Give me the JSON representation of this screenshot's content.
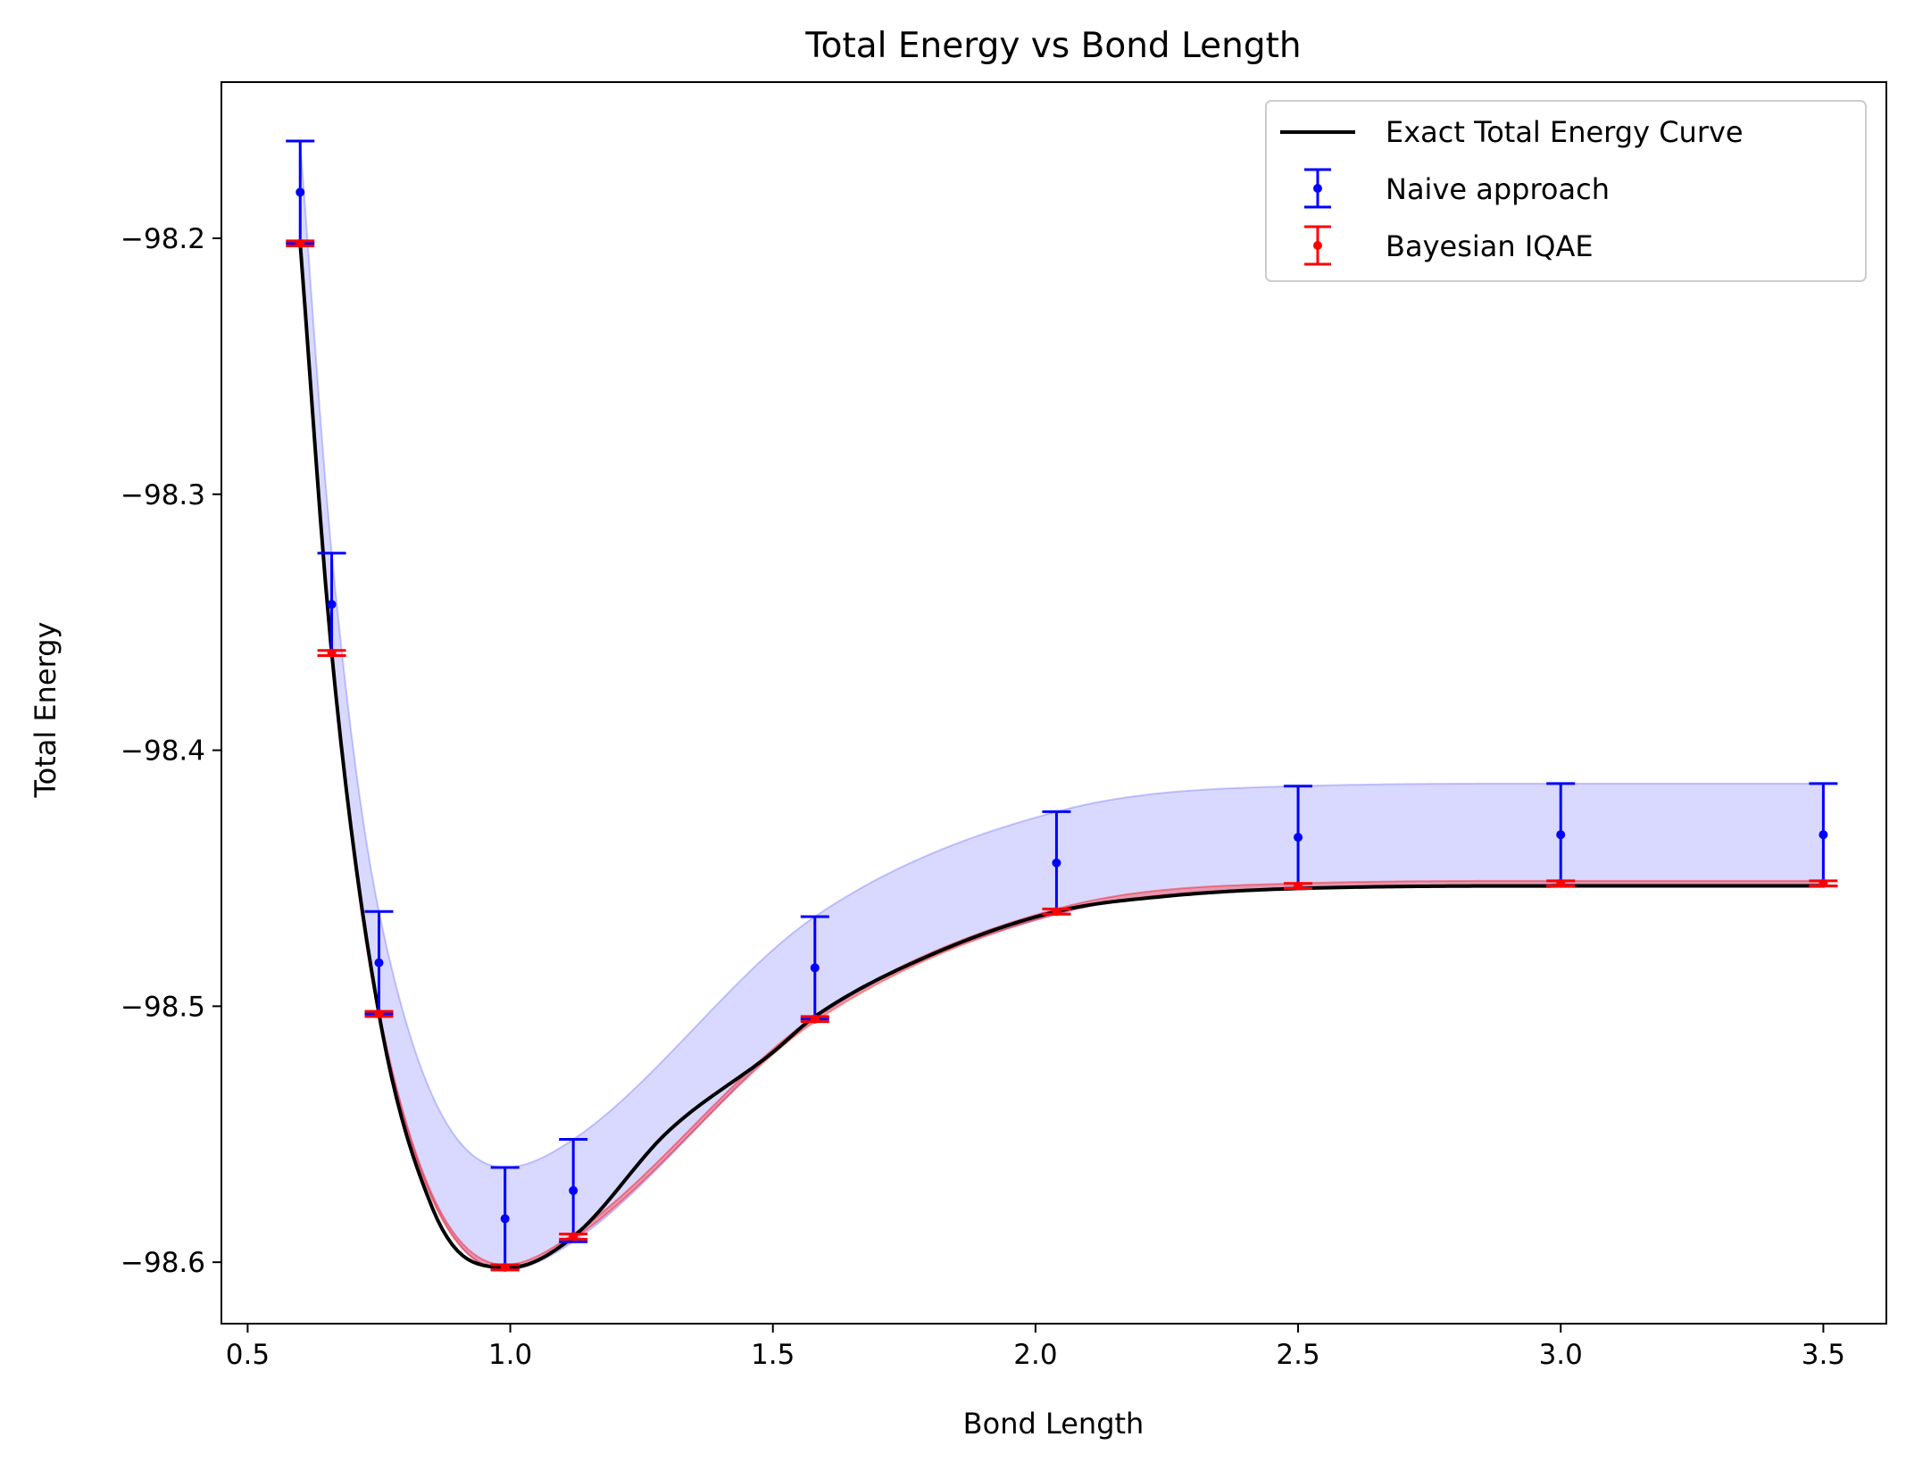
{
  "chart_data": {
    "type": "line",
    "title": "Total Energy vs Bond Length",
    "xlabel": "Bond Length",
    "ylabel": "Total Energy",
    "xlim": [
      0.45,
      3.62
    ],
    "ylim": [
      -98.624,
      -98.139
    ],
    "xticks": [
      0.5,
      1.0,
      1.5,
      2.0,
      2.5,
      3.0,
      3.5
    ],
    "xtick_labels": [
      "0.5",
      "1.0",
      "1.5",
      "2.0",
      "2.5",
      "3.0",
      "3.5"
    ],
    "yticks": [
      -98.2,
      -98.3,
      -98.4,
      -98.5,
      -98.6
    ],
    "ytick_labels": [
      "−98.2",
      "−98.3",
      "−98.4",
      "−98.5",
      "−98.6"
    ],
    "grid": false,
    "legend_position": "top-right",
    "colors": {
      "exact": "#000000",
      "naive": "#0000ff",
      "bayesian": "#ff0000",
      "band": "#d8d8ff"
    },
    "exact_curve": {
      "name": "Exact Total Energy Curve",
      "x": [
        0.6,
        0.66,
        0.75,
        0.85,
        0.93,
        1.0,
        1.12,
        1.3,
        1.5,
        1.58,
        1.8,
        2.04,
        2.25,
        2.5,
        3.0,
        3.5
      ],
      "y": [
        -98.202,
        -98.362,
        -98.503,
        -98.578,
        -98.6,
        -98.602,
        -98.59,
        -98.549,
        -98.518,
        -98.504,
        -98.48,
        -98.463,
        -98.457,
        -98.454,
        -98.453,
        -98.453
      ]
    },
    "series": [
      {
        "name": "Naive approach",
        "x": [
          0.6,
          0.66,
          0.75,
          0.99,
          1.12,
          1.58,
          2.04,
          2.5,
          3.0,
          3.5
        ],
        "y": [
          -98.182,
          -98.343,
          -98.483,
          -98.583,
          -98.572,
          -98.485,
          -98.444,
          -98.434,
          -98.433,
          -98.433
        ],
        "err": [
          0.02,
          0.02,
          0.02,
          0.02,
          0.02,
          0.02,
          0.02,
          0.02,
          0.02,
          0.02
        ]
      },
      {
        "name": "Bayesian IQAE",
        "x": [
          0.6,
          0.66,
          0.75,
          0.99,
          1.12,
          1.58,
          2.04,
          2.5,
          3.0,
          3.5
        ],
        "y": [
          -98.202,
          -98.362,
          -98.503,
          -98.602,
          -98.59,
          -98.505,
          -98.463,
          -98.453,
          -98.452,
          -98.452
        ],
        "err": [
          0.001,
          0.001,
          0.001,
          0.001,
          0.001,
          0.001,
          0.001,
          0.001,
          0.001,
          0.001
        ]
      }
    ]
  }
}
